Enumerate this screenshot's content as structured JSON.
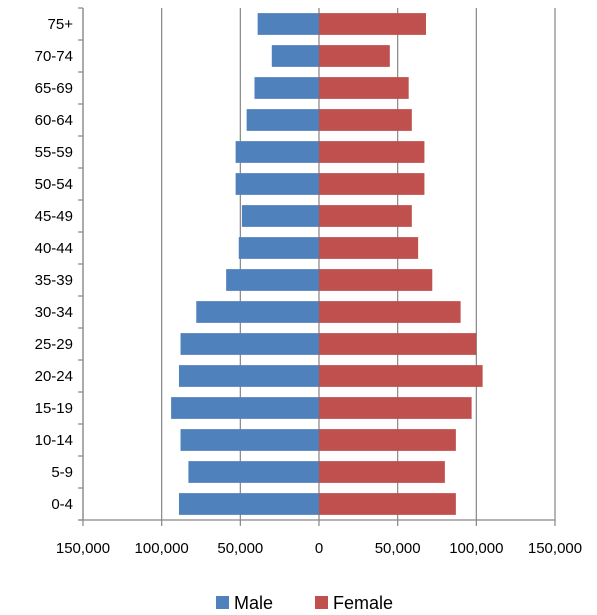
{
  "chart_data": {
    "type": "bar",
    "orientation": "horizontal",
    "layout": "population-pyramid",
    "categories": [
      "0-4",
      "5-9",
      "10-14",
      "15-19",
      "20-24",
      "25-29",
      "30-34",
      "35-39",
      "40-44",
      "45-49",
      "50-54",
      "55-59",
      "60-64",
      "65-69",
      "70-74",
      "75+"
    ],
    "series": [
      {
        "name": "Male",
        "color": "#4f81bd",
        "values": [
          89000,
          83000,
          88000,
          94000,
          89000,
          88000,
          78000,
          59000,
          51000,
          49000,
          53000,
          53000,
          46000,
          41000,
          30000,
          39000
        ]
      },
      {
        "name": "Female",
        "color": "#c0504d",
        "values": [
          87000,
          80000,
          87000,
          97000,
          104000,
          100000,
          90000,
          72000,
          63000,
          59000,
          67000,
          67000,
          59000,
          57000,
          45000,
          68000
        ]
      }
    ],
    "xlim": [
      -150000,
      150000
    ],
    "x_ticks": [
      -150000,
      -100000,
      -50000,
      0,
      50000,
      100000,
      150000
    ],
    "x_tick_labels": [
      "150,000",
      "100,000",
      "50,000",
      "0",
      "50,000",
      "100,000",
      "150,000"
    ],
    "grid": true,
    "legend_position": "bottom"
  }
}
